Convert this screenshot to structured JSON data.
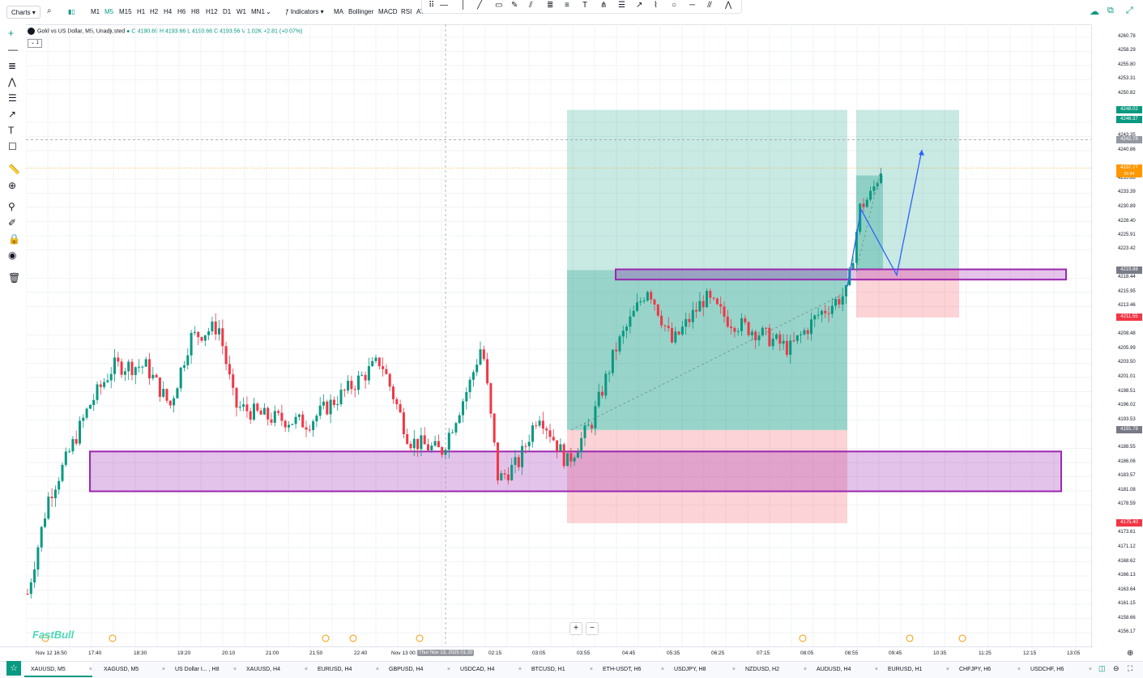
{
  "toolbar": {
    "charts_label": "Charts",
    "timeframes": [
      "M1",
      "M5",
      "M15",
      "H1",
      "H2",
      "H4",
      "H6",
      "H8",
      "H12",
      "D1",
      "W1",
      "MN1"
    ],
    "active_timeframe": "M5",
    "indicators_label": "Indicators",
    "indicator_shortcuts": [
      "MA",
      "Bollinger",
      "MACD",
      "RSI",
      "AT"
    ]
  },
  "symbol": {
    "title": "Gold vs US Dollar, M5, Unadjusted",
    "open": "O 4190.69",
    "high": "H 4193.66",
    "low": "L 4190.66",
    "close": "C 4193.56",
    "volume": "V 1.02K",
    "change": "+2.81 (+0.07%)",
    "collapse_label": "1"
  },
  "price_axis": {
    "ticks": [
      "4260.78",
      "4258.29",
      "4255.80",
      "4253.31",
      "4250.82",
      "4245.84",
      "4243.35",
      "4240.86",
      "4235.88",
      "4233.39",
      "4230.89",
      "4228.40",
      "4225.91",
      "4223.42",
      "4218.44",
      "4215.95",
      "4213.46",
      "4208.48",
      "4205.99",
      "4203.50",
      "4201.01",
      "4198.51",
      "4196.02",
      "4193.53",
      "4188.55",
      "4186.06",
      "4183.57",
      "4181.08",
      "4178.59",
      "4173.61",
      "4171.12",
      "4168.62",
      "4166.13",
      "4163.64",
      "4161.15",
      "4158.66",
      "4156.17"
    ],
    "labels": {
      "tp_upper": "4248.02",
      "tp_lower": "4246.37",
      "crosshair": "4242.78",
      "current": "4237.77",
      "current_sub": "01:44",
      "entry_top": "4219.86",
      "stop_top": "4211.55",
      "entry_bottom": "4191.78",
      "stop_bottom": "4175.40"
    }
  },
  "time_axis": {
    "ticks": [
      "Nov 12 16:50",
      "17:40",
      "18:30",
      "19:20",
      "20:10",
      "21:00",
      "21:50",
      "22:40",
      "Nov 13 00:",
      "02:15",
      "03:05",
      "03:55",
      "04:45",
      "05:35",
      "06:25",
      "07:15",
      "08:05",
      "08:55",
      "09:45",
      "10:35",
      "11:25",
      "12:15",
      "13:05"
    ],
    "cursor_label": "Thur Nov 13, 2025 01:20"
  },
  "tabs": [
    "XAUUSD, M5",
    "XAGUSD, M5",
    "US Dollar I... , H8",
    "XAUUSD, H4",
    "EURUSD, H4",
    "GBPUSD, H4",
    "USDCAD, H4",
    "BTCUSD, H1",
    "ETH-USDT, H6",
    "USDJPY, H8",
    "NZDUSD, H2",
    "AUDUSD, H4",
    "EURUSD, H1",
    "CHFJPY, H6",
    "USDCHF, H6"
  ],
  "brand": "FastBull",
  "colors": {
    "up": "#089981",
    "down": "#f23645",
    "zone": "#9c27b0",
    "profit": "#089981",
    "loss": "#f23645"
  },
  "chart_data": {
    "type": "candlestick",
    "symbol": "XAUUSD",
    "timeframe": "M5",
    "ylim": [
      4155,
      4263
    ],
    "zones": [
      {
        "low": 4181.0,
        "high": 4188.0
      },
      {
        "low": 4218.2,
        "high": 4220.0
      }
    ],
    "positions": [
      {
        "entry": 4191.78,
        "target": 4248.02,
        "stop": 4175.4
      },
      {
        "entry": 4219.86,
        "target": 4248.02,
        "stop": 4211.55
      }
    ],
    "projection": [
      4230.5,
      4219.0,
      4241.0
    ]
  }
}
